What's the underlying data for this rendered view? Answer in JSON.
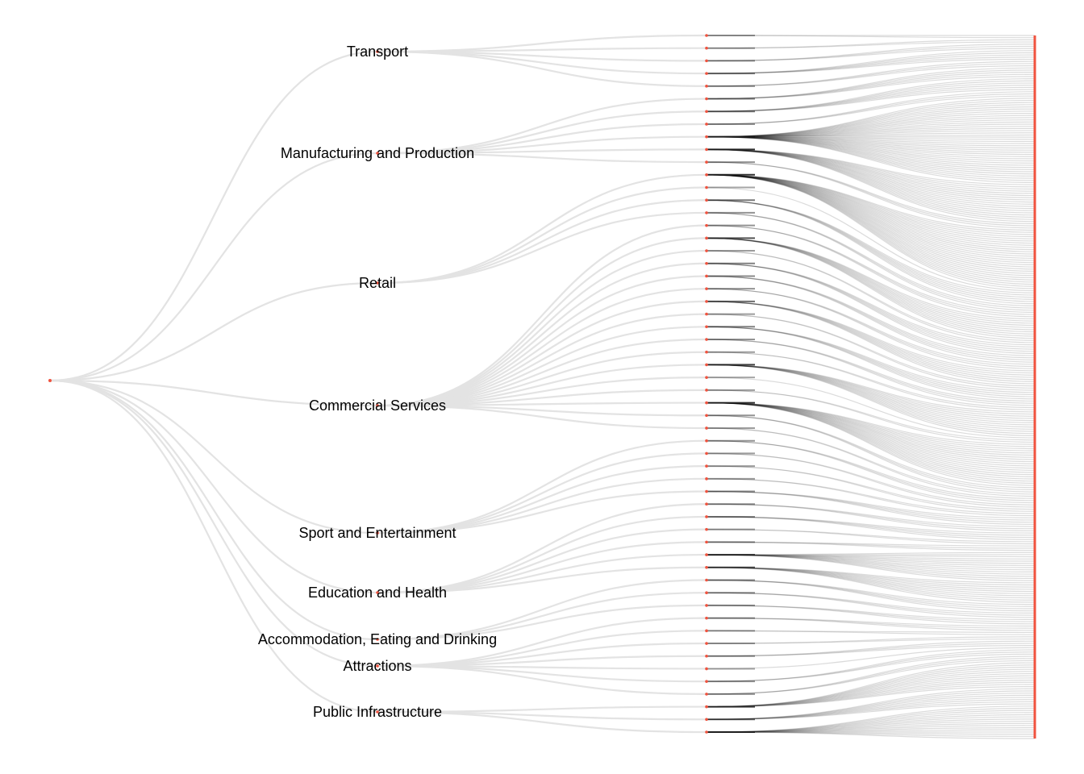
{
  "title": "",
  "colors": {
    "background": "#ffffff",
    "root_link": "#e3e3e3",
    "dense_fan": "#cdcdcd",
    "branch_stem": "#1a1a1a",
    "node": "#f0533f",
    "label": "#000000"
  },
  "hierarchy": {
    "root": "",
    "categories": [
      {
        "name": "Transport",
        "subcategories": 5,
        "leaf_counts": [
          2,
          2,
          3,
          5,
          3
        ]
      },
      {
        "name": "Manufacturing and Production",
        "subcategories": 6,
        "leaf_counts": [
          5,
          6,
          3,
          40,
          18,
          3
        ]
      },
      {
        "name": "Retail",
        "subcategories": 4,
        "leaf_counts": [
          28,
          1,
          6,
          3
        ]
      },
      {
        "name": "Commercial Services",
        "subcategories": 17,
        "leaf_counts": [
          3,
          10,
          2,
          5,
          4,
          3,
          7,
          2,
          5,
          3,
          2,
          12,
          1,
          2,
          20,
          3,
          2
        ]
      },
      {
        "name": "Sport and Entertainment",
        "subcategories": 5,
        "leaf_counts": [
          3,
          2,
          2,
          2,
          4
        ]
      },
      {
        "name": "Education and Health",
        "subcategories": 6,
        "leaf_counts": [
          3,
          4,
          2,
          3,
          14,
          10
        ]
      },
      {
        "name": "Accommodation, Eating and Drinking",
        "subcategories": 3,
        "leaf_counts": [
          4,
          3,
          3
        ]
      },
      {
        "name": "Attractions",
        "subcategories": 7,
        "leaf_counts": [
          3,
          2,
          2,
          3,
          1,
          3,
          3
        ]
      },
      {
        "name": "Public Infrastructure",
        "subcategories": 3,
        "leaf_counts": [
          12,
          8,
          16
        ]
      }
    ]
  }
}
